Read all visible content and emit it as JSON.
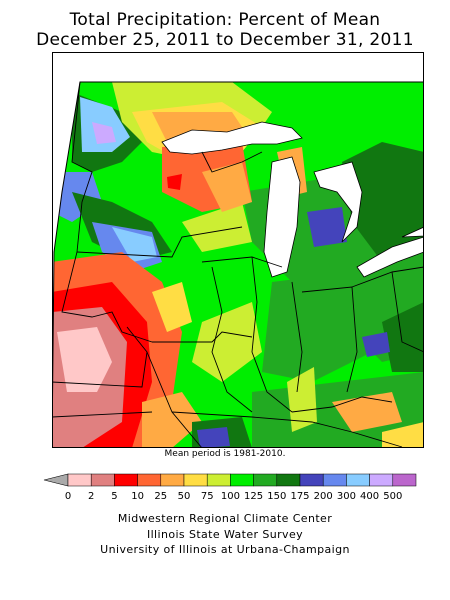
{
  "title_line1": "Total Precipitation: Percent of Mean",
  "title_line2": "December 25, 2011 to December 31, 2011",
  "mean_period_note": "Mean period is 1981-2010.",
  "legend": {
    "labels": [
      "0",
      "2",
      "5",
      "10",
      "25",
      "50",
      "75",
      "100",
      "125",
      "150",
      "175",
      "200",
      "300",
      "400",
      "500"
    ],
    "colors": [
      "#ffc8c8",
      "#e08080",
      "#ff0000",
      "#ff6633",
      "#ffaa44",
      "#ffdd44",
      "#ccee33",
      "#00ee00",
      "#22aa22",
      "#117711",
      "#4444bb",
      "#6688ee",
      "#88ccff",
      "#ccaaff",
      "#bb66cc"
    ],
    "below_color": "#aaaaaa"
  },
  "credits": {
    "line1": "Midwestern Regional Climate Center",
    "line2": "Illinois State Water Survey",
    "line3": "University of Illinois at Urbana-Champaign"
  }
}
